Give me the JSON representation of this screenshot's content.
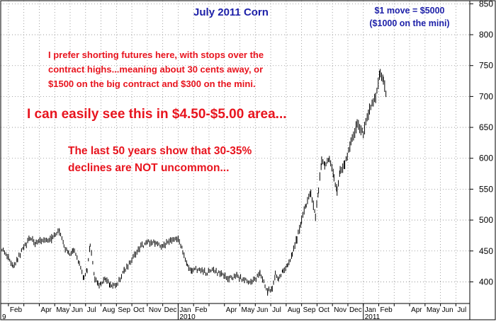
{
  "chart_data": {
    "type": "line",
    "subtype": "daily price bar chart",
    "title": "July 2011 Corn",
    "info_lines": [
      "$1 move = $5000",
      "($1000 on the mini)"
    ],
    "annotations": [
      {
        "id": "shorting",
        "color": "#e8141e",
        "lines": [
          "I prefer shorting futures here, with stops over the",
          "contract highs...meaning about 30 cents away, or",
          "$1500 on the big contract and $300 on the mini."
        ]
      },
      {
        "id": "target",
        "color": "#e8141e",
        "lines": [
          "I can easily see this in $4.50-$5.00 area..."
        ]
      },
      {
        "id": "history",
        "color": "#e8141e",
        "lines": [
          "The last 50 years show that 30-35%",
          "declines are NOT uncommon..."
        ]
      }
    ],
    "ylim": [
      365,
      855
    ],
    "y_ticks": [
      400,
      450,
      500,
      550,
      600,
      650,
      700,
      750,
      800,
      850
    ],
    "y_tick_labels": [
      "400",
      "450",
      "500",
      "550",
      "600",
      "650",
      "700",
      "750",
      "800",
      "850"
    ],
    "x_range_months": [
      -0.5,
      29.9
    ],
    "x_month_labels": [
      {
        "m": 0,
        "label": "Feb"
      },
      {
        "m": 2,
        "label": "Apr"
      },
      {
        "m": 3,
        "label": "May"
      },
      {
        "m": 4,
        "label": "Jun"
      },
      {
        "m": 5,
        "label": "Jul"
      },
      {
        "m": 6,
        "label": "Aug"
      },
      {
        "m": 7,
        "label": "Sep"
      },
      {
        "m": 8,
        "label": "Oct"
      },
      {
        "m": 9,
        "label": "Nov"
      },
      {
        "m": 10,
        "label": "Dec"
      },
      {
        "m": 11,
        "label": "Jan"
      },
      {
        "m": 12,
        "label": "Feb"
      },
      {
        "m": 14,
        "label": "Apr"
      },
      {
        "m": 15,
        "label": "May"
      },
      {
        "m": 16,
        "label": "Jun"
      },
      {
        "m": 17,
        "label": "Jul"
      },
      {
        "m": 18,
        "label": "Aug"
      },
      {
        "m": 19,
        "label": "Sep"
      },
      {
        "m": 20,
        "label": "Oct"
      },
      {
        "m": 21,
        "label": "Nov"
      },
      {
        "m": 22,
        "label": "Dec"
      },
      {
        "m": 23,
        "label": "Jan"
      },
      {
        "m": 24,
        "label": "Feb"
      },
      {
        "m": 26,
        "label": "Apr"
      },
      {
        "m": 27,
        "label": "May"
      },
      {
        "m": 28,
        "label": "Jun"
      },
      {
        "m": 29,
        "label": "Jul"
      }
    ],
    "x_year_labels": [
      {
        "m": -0.5,
        "label": "9"
      },
      {
        "m": 11,
        "label": "2010"
      },
      {
        "m": 23,
        "label": "2011"
      }
    ],
    "grid": true,
    "series": [
      {
        "color": "#000000",
        "x_months": [
          -0.5,
          0.0,
          0.3,
          0.6,
          1.0,
          1.4,
          1.8,
          2.3,
          2.8,
          3.3,
          3.6,
          3.9,
          4.2,
          4.6,
          4.9,
          5.1,
          5.3,
          5.6,
          5.8,
          6.0,
          6.3,
          6.6,
          7.0,
          7.5,
          8.0,
          8.5,
          9.0,
          9.5,
          10.0,
          10.5,
          11.0,
          11.3,
          11.6,
          11.9,
          12.3,
          12.8,
          13.3,
          13.8,
          14.3,
          14.8,
          15.3,
          15.8,
          16.3,
          16.8,
          17.1,
          17.3,
          17.5,
          17.8,
          18.1,
          18.4,
          18.7,
          19.0,
          19.3,
          19.6,
          19.9,
          20.1,
          20.3,
          20.5,
          20.8,
          21.1,
          21.3,
          21.5,
          21.8,
          22.2,
          22.6,
          23.0,
          23.4,
          23.8,
          24.1,
          24.3,
          24.5
        ],
        "y_close": [
          455,
          440,
          425,
          438,
          455,
          470,
          462,
          468,
          470,
          482,
          458,
          445,
          452,
          430,
          405,
          420,
          460,
          405,
          398,
          395,
          405,
          395,
          393,
          418,
          435,
          455,
          465,
          463,
          458,
          467,
          470,
          450,
          425,
          420,
          420,
          415,
          418,
          412,
          405,
          410,
          402,
          400,
          412,
          385,
          390,
          412,
          405,
          418,
          428,
          445,
          470,
          500,
          525,
          545,
          505,
          550,
          595,
          588,
          598,
          570,
          545,
          580,
          590,
          625,
          655,
          640,
          680,
          700,
          740,
          725,
          700
        ],
        "y_range": [
          8,
          8,
          8,
          8,
          8,
          8,
          8,
          8,
          8,
          8,
          8,
          8,
          8,
          8,
          8,
          8,
          8,
          8,
          8,
          8,
          8,
          8,
          8,
          8,
          8,
          8,
          8,
          8,
          8,
          8,
          8,
          8,
          8,
          8,
          8,
          8,
          8,
          8,
          8,
          8,
          8,
          8,
          8,
          8,
          8,
          8,
          8,
          8,
          8,
          8,
          12,
          12,
          12,
          12,
          12,
          12,
          12,
          12,
          12,
          12,
          12,
          12,
          12,
          16,
          16,
          16,
          16,
          16,
          16,
          16,
          16
        ]
      }
    ]
  }
}
